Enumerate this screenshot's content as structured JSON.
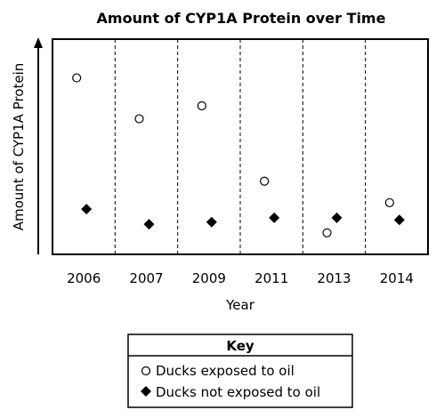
{
  "chart_data": {
    "type": "scatter",
    "title": "Amount of CYP1A Protein over Time",
    "xlabel": "Year",
    "ylabel": "Amount of CYP1A Protein",
    "categories": [
      "2006",
      "2007",
      "2009",
      "2011",
      "2013",
      "2014"
    ],
    "ylim": [
      0,
      100
    ],
    "grid": "dashed vertical separators between years",
    "series": [
      {
        "name": "Ducks exposed to oil",
        "marker": "open-circle",
        "values": [
          82,
          63,
          69,
          34,
          10,
          24
        ]
      },
      {
        "name": "Ducks not exposed to oil",
        "marker": "filled-diamond",
        "values": [
          21,
          14,
          15,
          17,
          17,
          16
        ]
      }
    ],
    "legend": {
      "title": "Key",
      "position": "bottom-center"
    }
  }
}
